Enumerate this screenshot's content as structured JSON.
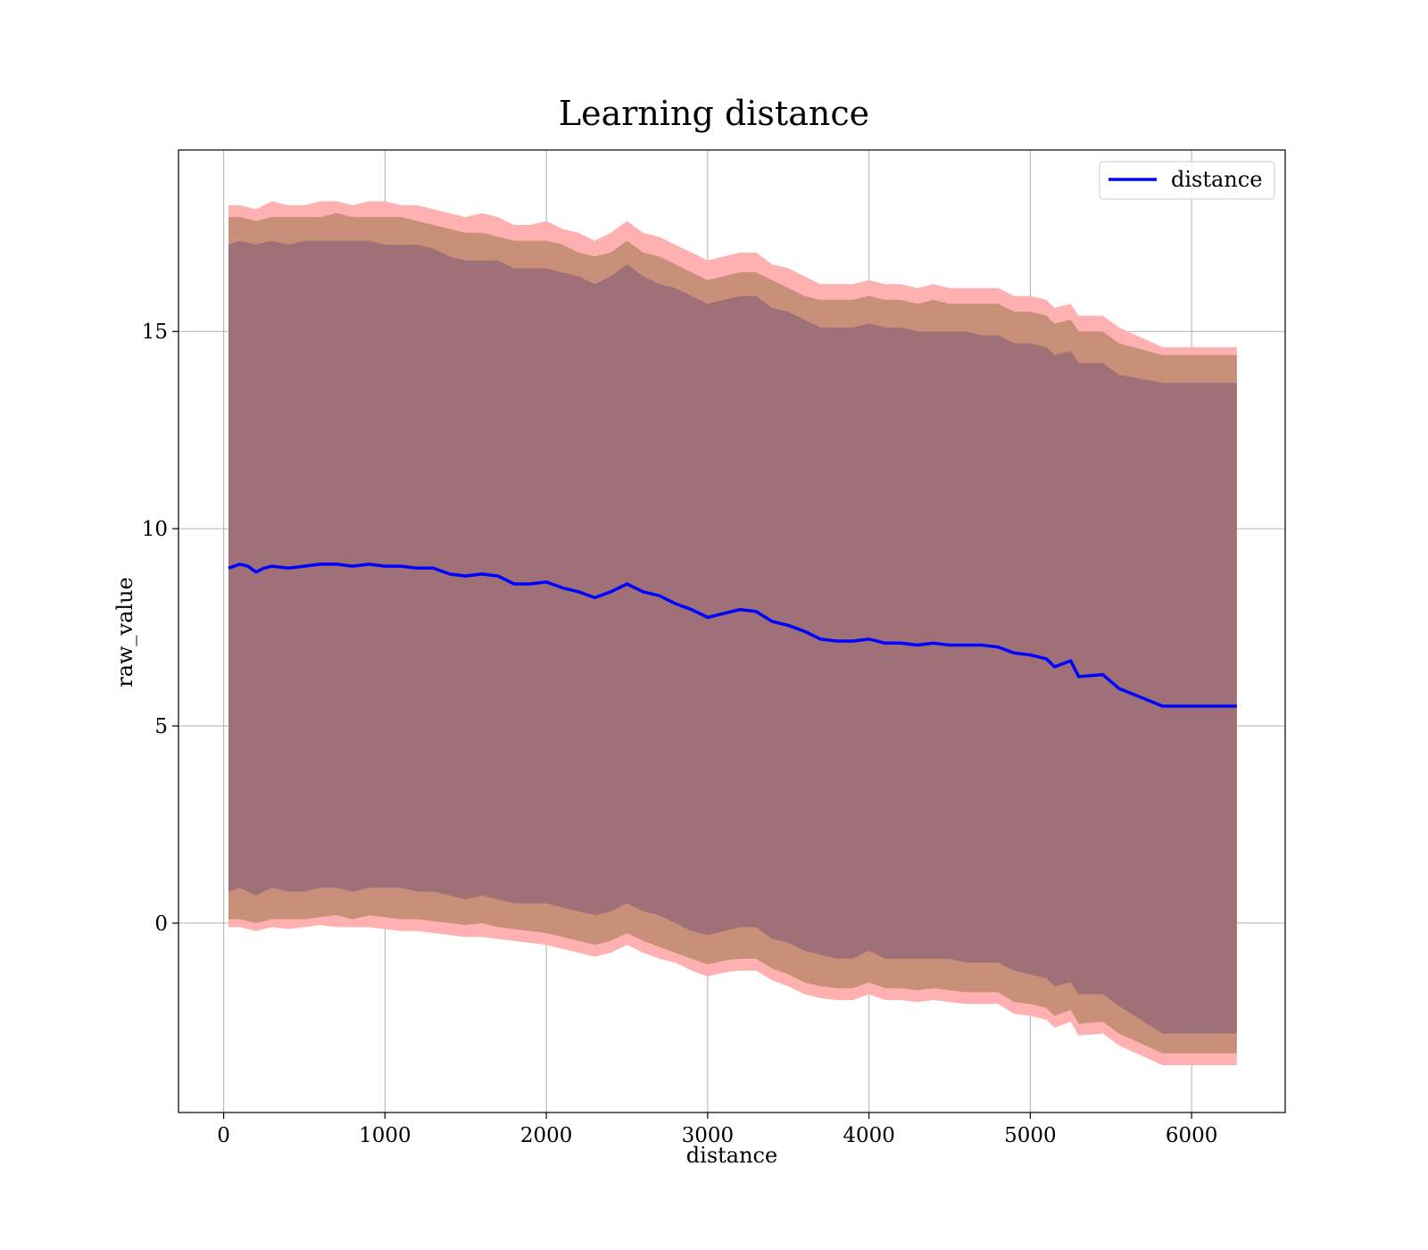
{
  "chart_data": {
    "type": "line",
    "title": "Learning distance",
    "xlabel": "distance",
    "ylabel": "raw_value",
    "xlim": [
      -280,
      6580
    ],
    "ylim": [
      -4.8,
      19.6
    ],
    "xticks": [
      0,
      1000,
      2000,
      3000,
      4000,
      5000,
      6000
    ],
    "yticks": [
      0,
      5,
      10,
      15
    ],
    "grid": true,
    "legend": {
      "position": "top-right",
      "entries": [
        "distance"
      ]
    },
    "colors": {
      "line": "#0000ff",
      "band_outer": "#ffb0b0",
      "band_mid": "#c89078",
      "band_inner": "#a07078"
    },
    "series": [
      {
        "name": "distance",
        "x": [
          30,
          100,
          150,
          200,
          250,
          300,
          400,
          500,
          600,
          700,
          800,
          900,
          1000,
          1100,
          1200,
          1300,
          1400,
          1500,
          1600,
          1700,
          1800,
          1900,
          2000,
          2100,
          2200,
          2300,
          2400,
          2500,
          2600,
          2700,
          2800,
          2900,
          3000,
          3100,
          3200,
          3300,
          3400,
          3500,
          3600,
          3700,
          3800,
          3900,
          4000,
          4100,
          4200,
          4300,
          4400,
          4500,
          4600,
          4700,
          4800,
          4900,
          5000,
          5100,
          5150,
          5250,
          5300,
          5450,
          5550,
          5820,
          6280
        ],
        "y": [
          9.0,
          9.1,
          9.05,
          8.9,
          9.0,
          9.05,
          9.0,
          9.05,
          9.1,
          9.1,
          9.05,
          9.1,
          9.05,
          9.05,
          9.0,
          9.0,
          8.85,
          8.8,
          8.85,
          8.8,
          8.6,
          8.6,
          8.65,
          8.5,
          8.4,
          8.25,
          8.4,
          8.6,
          8.4,
          8.3,
          8.1,
          7.95,
          7.75,
          7.85,
          7.95,
          7.9,
          7.65,
          7.55,
          7.4,
          7.2,
          7.15,
          7.15,
          7.2,
          7.1,
          7.1,
          7.05,
          7.1,
          7.05,
          7.05,
          7.05,
          7.0,
          6.85,
          6.8,
          6.7,
          6.5,
          6.65,
          6.25,
          6.3,
          5.95,
          5.5,
          5.5
        ]
      }
    ],
    "bands": {
      "x": [
        30,
        100,
        200,
        300,
        400,
        500,
        600,
        700,
        800,
        900,
        1000,
        1100,
        1200,
        1300,
        1400,
        1500,
        1600,
        1700,
        1800,
        1900,
        2000,
        2100,
        2200,
        2300,
        2400,
        2500,
        2600,
        2700,
        2800,
        2900,
        3000,
        3100,
        3200,
        3300,
        3400,
        3500,
        3600,
        3700,
        3800,
        3900,
        4000,
        4100,
        4200,
        4300,
        4400,
        4500,
        4600,
        4700,
        4800,
        4900,
        5000,
        5100,
        5150,
        5250,
        5300,
        5450,
        5550,
        5820,
        6280
      ],
      "outer_upper": [
        18.2,
        18.2,
        18.1,
        18.3,
        18.2,
        18.2,
        18.3,
        18.3,
        18.2,
        18.3,
        18.3,
        18.2,
        18.2,
        18.1,
        18.0,
        17.9,
        18.0,
        17.9,
        17.7,
        17.7,
        17.8,
        17.6,
        17.5,
        17.3,
        17.5,
        17.8,
        17.5,
        17.4,
        17.2,
        17.0,
        16.8,
        16.9,
        17.0,
        17.0,
        16.7,
        16.6,
        16.4,
        16.2,
        16.2,
        16.2,
        16.3,
        16.2,
        16.2,
        16.1,
        16.2,
        16.1,
        16.1,
        16.1,
        16.1,
        15.9,
        15.9,
        15.8,
        15.6,
        15.7,
        15.4,
        15.4,
        15.1,
        14.6,
        14.6
      ],
      "outer_lower": [
        -0.1,
        -0.1,
        -0.2,
        -0.1,
        -0.15,
        -0.1,
        -0.05,
        -0.1,
        -0.1,
        -0.1,
        -0.15,
        -0.2,
        -0.2,
        -0.25,
        -0.3,
        -0.35,
        -0.35,
        -0.4,
        -0.45,
        -0.5,
        -0.55,
        -0.65,
        -0.75,
        -0.85,
        -0.75,
        -0.55,
        -0.75,
        -0.9,
        -1.0,
        -1.2,
        -1.35,
        -1.25,
        -1.2,
        -1.2,
        -1.45,
        -1.6,
        -1.8,
        -1.9,
        -1.95,
        -1.95,
        -1.8,
        -1.95,
        -1.95,
        -2.0,
        -1.95,
        -2.0,
        -2.05,
        -2.05,
        -2.05,
        -2.3,
        -2.35,
        -2.45,
        -2.65,
        -2.5,
        -2.85,
        -2.8,
        -3.1,
        -3.6,
        -3.6
      ],
      "mid_upper": [
        17.9,
        17.9,
        17.8,
        17.9,
        17.9,
        17.9,
        17.9,
        18.0,
        17.9,
        17.9,
        17.9,
        17.9,
        17.8,
        17.7,
        17.6,
        17.5,
        17.5,
        17.4,
        17.3,
        17.3,
        17.3,
        17.2,
        17.0,
        16.9,
        17.0,
        17.3,
        17.0,
        16.9,
        16.7,
        16.5,
        16.3,
        16.4,
        16.5,
        16.5,
        16.3,
        16.1,
        15.9,
        15.8,
        15.8,
        15.8,
        15.9,
        15.8,
        15.8,
        15.7,
        15.8,
        15.7,
        15.7,
        15.7,
        15.7,
        15.5,
        15.5,
        15.4,
        15.2,
        15.3,
        15.0,
        15.0,
        14.7,
        14.4,
        14.4
      ],
      "mid_lower": [
        0.1,
        0.1,
        0.0,
        0.1,
        0.1,
        0.1,
        0.15,
        0.2,
        0.1,
        0.2,
        0.15,
        0.1,
        0.1,
        0.05,
        0.0,
        -0.05,
        0.0,
        -0.1,
        -0.15,
        -0.2,
        -0.25,
        -0.35,
        -0.45,
        -0.55,
        -0.45,
        -0.25,
        -0.45,
        -0.6,
        -0.75,
        -0.9,
        -1.05,
        -0.95,
        -0.9,
        -0.9,
        -1.15,
        -1.3,
        -1.5,
        -1.6,
        -1.65,
        -1.65,
        -1.5,
        -1.65,
        -1.65,
        -1.7,
        -1.65,
        -1.7,
        -1.75,
        -1.75,
        -1.75,
        -2.0,
        -2.05,
        -2.15,
        -2.35,
        -2.2,
        -2.55,
        -2.5,
        -2.8,
        -3.3,
        -3.3
      ],
      "inner_upper": [
        17.2,
        17.3,
        17.2,
        17.3,
        17.2,
        17.3,
        17.3,
        17.3,
        17.3,
        17.3,
        17.2,
        17.2,
        17.2,
        17.1,
        16.9,
        16.8,
        16.8,
        16.8,
        16.6,
        16.6,
        16.6,
        16.5,
        16.4,
        16.2,
        16.4,
        16.7,
        16.4,
        16.2,
        16.1,
        15.9,
        15.7,
        15.8,
        15.9,
        15.9,
        15.6,
        15.5,
        15.3,
        15.1,
        15.1,
        15.1,
        15.2,
        15.1,
        15.1,
        15.0,
        15.0,
        15.0,
        15.0,
        14.9,
        14.9,
        14.7,
        14.7,
        14.6,
        14.4,
        14.5,
        14.2,
        14.2,
        13.9,
        13.7,
        13.7
      ],
      "inner_lower": [
        0.8,
        0.9,
        0.7,
        0.9,
        0.8,
        0.8,
        0.9,
        0.9,
        0.8,
        0.9,
        0.9,
        0.9,
        0.8,
        0.8,
        0.7,
        0.6,
        0.7,
        0.6,
        0.5,
        0.5,
        0.5,
        0.4,
        0.3,
        0.2,
        0.3,
        0.5,
        0.3,
        0.2,
        0.0,
        -0.2,
        -0.3,
        -0.2,
        -0.1,
        -0.1,
        -0.4,
        -0.5,
        -0.7,
        -0.8,
        -0.9,
        -0.9,
        -0.7,
        -0.9,
        -0.9,
        -0.9,
        -0.9,
        -0.9,
        -1.0,
        -1.0,
        -1.0,
        -1.2,
        -1.3,
        -1.4,
        -1.6,
        -1.5,
        -1.8,
        -1.8,
        -2.1,
        -2.8,
        -2.8
      ]
    }
  }
}
